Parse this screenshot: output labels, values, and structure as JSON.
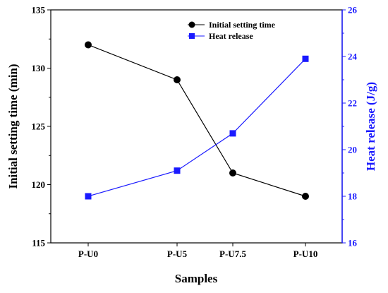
{
  "chart_data": {
    "type": "line",
    "categories": [
      "P-U0",
      "P-U5",
      "P-U7.5",
      "P-U10"
    ],
    "xlabel": "Samples",
    "ylabel_left": "Initial setting time (min)",
    "ylabel_right": "Heat release (J/g)",
    "ylim_left": [
      115,
      135
    ],
    "ylim_right": [
      16,
      26
    ],
    "yticks_left": [
      "115",
      "120",
      "125",
      "130",
      "135"
    ],
    "yticks_right": [
      "16",
      "18",
      "20",
      "22",
      "24",
      "26"
    ],
    "grid": false,
    "legend_position": "top-right",
    "series": [
      {
        "name": "Initial setting time",
        "axis": "left",
        "marker": "circle",
        "color": "#000000",
        "values": [
          132,
          129,
          121,
          119
        ]
      },
      {
        "name": "Heat release",
        "axis": "right",
        "marker": "square",
        "color": "#1a1aff",
        "values": [
          18.0,
          19.1,
          20.7,
          23.9
        ]
      }
    ],
    "colors": {
      "left_axis": "#000000",
      "right_axis": "#1a1aff"
    }
  }
}
